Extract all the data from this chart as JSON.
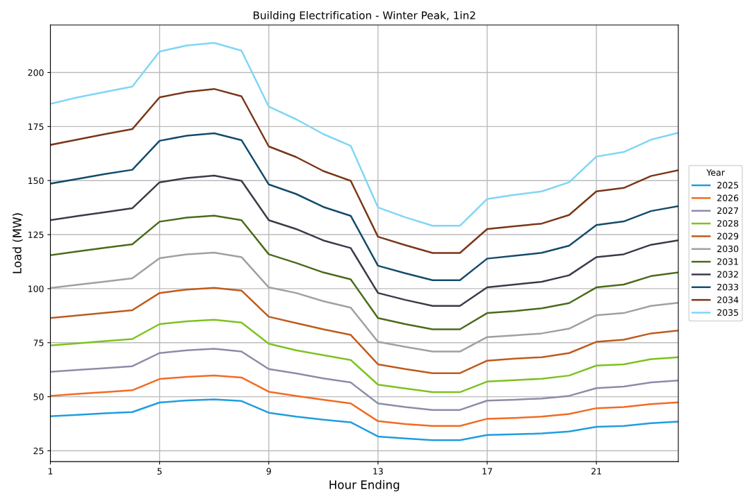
{
  "chart_data": {
    "type": "line",
    "title": "Building Electrification - Winter Peak, 1in2",
    "xlabel": "Hour Ending",
    "ylabel": "Load (MW)",
    "legend_title": "Year",
    "legend": "right",
    "grid": true,
    "marker": "none",
    "line_style": "solid",
    "x": [
      1,
      2,
      3,
      4,
      5,
      6,
      7,
      8,
      9,
      10,
      11,
      12,
      13,
      14,
      15,
      16,
      17,
      18,
      19,
      20,
      21,
      22,
      23,
      24
    ],
    "xlim": [
      1,
      24
    ],
    "xticks": [
      1,
      5,
      9,
      13,
      17,
      21
    ],
    "ylim": [
      20,
      222
    ],
    "yticks": [
      25,
      50,
      75,
      100,
      125,
      150,
      175,
      200
    ],
    "series": [
      {
        "name": "2025",
        "color": "#1f9de0",
        "values": [
          41,
          41.6,
          42.3,
          42.9,
          47.3,
          48.3,
          48.8,
          48,
          42.6,
          40.8,
          39.4,
          38.2,
          31.6,
          30.7,
          29.9,
          29.9,
          32.3,
          32.6,
          33,
          33.9,
          36.1,
          36.5,
          37.8,
          38.5
        ]
      },
      {
        "name": "2026",
        "color": "#f26b21",
        "values": [
          50.4,
          51.3,
          52.1,
          53,
          58.2,
          59.2,
          59.8,
          58.9,
          52.3,
          50.4,
          48.6,
          46.9,
          38.7,
          37.4,
          36.5,
          36.5,
          39.8,
          40.2,
          40.8,
          42,
          44.7,
          45.2,
          46.6,
          47.4
        ]
      },
      {
        "name": "2027",
        "color": "#8c8ca8",
        "values": [
          61.5,
          62.4,
          63.2,
          64.1,
          70.2,
          71.5,
          72.2,
          70.9,
          62.8,
          60.8,
          58.5,
          56.6,
          46.9,
          45.2,
          43.9,
          43.9,
          48.2,
          48.6,
          49.2,
          50.4,
          54,
          54.7,
          56.6,
          57.5
        ]
      },
      {
        "name": "2028",
        "color": "#7dc21e",
        "values": [
          73.7,
          74.7,
          75.7,
          76.7,
          83.6,
          84.9,
          85.6,
          84.3,
          74.5,
          71.5,
          69.2,
          67,
          55.6,
          53.8,
          52.1,
          52.1,
          57,
          57.7,
          58.3,
          59.8,
          64.4,
          65,
          67.4,
          68.3
        ]
      },
      {
        "name": "2029",
        "color": "#c05a1a",
        "values": [
          86.4,
          87.6,
          88.8,
          90,
          98,
          99.6,
          100.4,
          99.1,
          87,
          84.1,
          81.2,
          78.6,
          65,
          62.8,
          60.9,
          60.9,
          66.7,
          67.6,
          68.3,
          70.2,
          75.4,
          76.4,
          79.3,
          80.6
        ]
      },
      {
        "name": "2030",
        "color": "#a0a0a0",
        "values": [
          100.3,
          101.8,
          103.3,
          104.8,
          114.1,
          115.9,
          116.7,
          114.6,
          100.6,
          98,
          94.2,
          91.2,
          75.4,
          73.1,
          70.9,
          70.9,
          77.6,
          78.4,
          79.3,
          81.5,
          87.7,
          88.7,
          92,
          93.5
        ]
      },
      {
        "name": "2031",
        "color": "#4a6b1a",
        "values": [
          115.5,
          117.2,
          118.9,
          120.5,
          131,
          132.9,
          133.8,
          131.7,
          115.9,
          111.9,
          107.5,
          104.3,
          86.4,
          83.6,
          81.2,
          81.2,
          88.7,
          89.6,
          90.9,
          93.3,
          100.6,
          101.9,
          105.8,
          107.5
        ]
      },
      {
        "name": "2032",
        "color": "#3a3a48",
        "values": [
          131.7,
          133.6,
          135.4,
          137.2,
          149.2,
          151.2,
          152.3,
          149.9,
          131.7,
          127.6,
          122.3,
          118.8,
          98,
          94.8,
          92,
          92,
          100.6,
          101.9,
          103.2,
          106.2,
          114.6,
          115.9,
          120.3,
          122.4
        ]
      },
      {
        "name": "2033",
        "color": "#134b6b",
        "values": [
          148.6,
          150.8,
          153,
          155,
          168.4,
          170.8,
          171.9,
          168.7,
          148.2,
          143.8,
          137.8,
          133.7,
          110.6,
          107.1,
          103.9,
          103.9,
          113.9,
          115.2,
          116.6,
          119.9,
          129.4,
          131.1,
          135.9,
          138.2
        ]
      },
      {
        "name": "2034",
        "color": "#7a3618",
        "values": [
          166.5,
          169,
          171.5,
          173.8,
          188.5,
          191,
          192.4,
          189,
          165.8,
          160.9,
          154.4,
          149.9,
          124,
          120.1,
          116.5,
          116.5,
          127.6,
          128.9,
          130.1,
          134.1,
          145,
          146.6,
          152.1,
          154.8
        ]
      },
      {
        "name": "2035",
        "color": "#7fd6f5",
        "values": [
          185.5,
          188.5,
          191,
          193.5,
          209.7,
          212.5,
          213.7,
          210.1,
          184.2,
          178.4,
          171.5,
          166.1,
          137.6,
          133,
          129.1,
          129.1,
          141.5,
          143.4,
          145,
          149.2,
          161.1,
          163.2,
          168.9,
          172.1
        ]
      }
    ]
  }
}
